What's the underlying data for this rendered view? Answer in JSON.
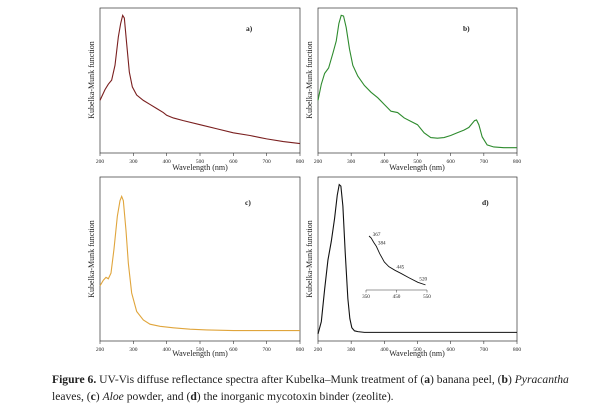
{
  "chart_data": [
    {
      "type": "line",
      "panel_label": "a)",
      "title": "",
      "xlabel": "Wavelength (nm)",
      "ylabel": "Kubelka-Munk function",
      "xlim": [
        200,
        800
      ],
      "ylim": [
        0,
        1
      ],
      "xticks": [
        200,
        300,
        400,
        500,
        600,
        700,
        800
      ],
      "color": "#7a1f1f",
      "series": [
        {
          "name": "banana peel",
          "x": [
            200,
            215,
            225,
            235,
            245,
            255,
            262,
            268,
            273,
            280,
            288,
            297,
            310,
            330,
            350,
            370,
            390,
            400,
            420,
            450,
            500,
            550,
            600,
            650,
            660,
            680,
            700,
            750,
            800
          ],
          "y": [
            0.36,
            0.44,
            0.48,
            0.51,
            0.62,
            0.83,
            0.93,
            0.99,
            0.97,
            0.78,
            0.57,
            0.46,
            0.4,
            0.36,
            0.33,
            0.3,
            0.27,
            0.25,
            0.23,
            0.21,
            0.18,
            0.15,
            0.12,
            0.1,
            0.095,
            0.085,
            0.075,
            0.055,
            0.04
          ]
        }
      ]
    },
    {
      "type": "line",
      "panel_label": "b)",
      "title": "",
      "xlabel": "Wavelength (nm)",
      "ylabel": "Kubelka-Munk function",
      "xlim": [
        200,
        800
      ],
      "ylim": [
        0,
        1
      ],
      "xticks": [
        200,
        300,
        400,
        500,
        600,
        700,
        800
      ],
      "color": "#2e8b2e",
      "series": [
        {
          "name": "Pyracantha leaves",
          "x": [
            200,
            210,
            220,
            232,
            245,
            255,
            263,
            270,
            277,
            285,
            295,
            305,
            320,
            340,
            360,
            380,
            400,
            420,
            440,
            460,
            480,
            500,
            520,
            540,
            560,
            580,
            600,
            620,
            640,
            655,
            665,
            672,
            678,
            685,
            695,
            710,
            730,
            760,
            800
          ],
          "y": [
            0.36,
            0.48,
            0.56,
            0.6,
            0.71,
            0.8,
            0.93,
            0.99,
            0.985,
            0.9,
            0.74,
            0.62,
            0.54,
            0.47,
            0.42,
            0.38,
            0.33,
            0.28,
            0.27,
            0.23,
            0.205,
            0.18,
            0.12,
            0.085,
            0.08,
            0.085,
            0.1,
            0.12,
            0.14,
            0.16,
            0.19,
            0.21,
            0.215,
            0.18,
            0.09,
            0.03,
            0.015,
            0.01,
            0.01
          ]
        }
      ]
    },
    {
      "type": "line",
      "panel_label": "c)",
      "title": "",
      "xlabel": "Wavelength (nm)",
      "ylabel": "Kubelka-Munk function",
      "xlim": [
        200,
        800
      ],
      "ylim": [
        0,
        1
      ],
      "xticks": [
        200,
        300,
        400,
        500,
        600,
        700,
        800
      ],
      "color": "#e0a53c",
      "series": [
        {
          "name": "Aloe powder",
          "x": [
            200,
            210,
            218,
            225,
            233,
            242,
            252,
            260,
            265,
            270,
            278,
            285,
            295,
            310,
            330,
            350,
            380,
            420,
            470,
            520,
            600,
            700,
            800
          ],
          "y": [
            0.36,
            0.4,
            0.42,
            0.41,
            0.45,
            0.62,
            0.85,
            0.96,
            0.99,
            0.96,
            0.75,
            0.52,
            0.31,
            0.18,
            0.12,
            0.09,
            0.075,
            0.065,
            0.055,
            0.05,
            0.045,
            0.045,
            0.045
          ]
        }
      ]
    },
    {
      "type": "line",
      "panel_label": "d)",
      "title": "",
      "xlabel": "Wavelength (nm)",
      "ylabel": "Kubelka-Munk function",
      "xlim": [
        200,
        800
      ],
      "ylim": [
        0,
        1
      ],
      "xticks": [
        200,
        300,
        400,
        500,
        600,
        700,
        800
      ],
      "color": "#111111",
      "series": [
        {
          "name": "inorganic mycotoxin binder (zeolite)",
          "x": [
            200,
            210,
            220,
            230,
            240,
            250,
            258,
            264,
            269,
            275,
            282,
            290,
            296,
            302,
            310,
            320,
            340,
            400,
            500,
            600,
            700,
            800
          ],
          "y": [
            0.02,
            0.1,
            0.31,
            0.5,
            0.62,
            0.77,
            0.92,
            0.99,
            0.98,
            0.85,
            0.55,
            0.25,
            0.12,
            0.06,
            0.04,
            0.035,
            0.03,
            0.03,
            0.03,
            0.03,
            0.03,
            0.03
          ]
        }
      ],
      "inset": {
        "type": "line",
        "xlim": [
          350,
          550
        ],
        "xticks": [
          350,
          450,
          550
        ],
        "annotations": [
          "367",
          "384",
          "445",
          "520"
        ],
        "annotation_x": [
          367,
          384,
          445,
          520
        ],
        "x": [
          360,
          367,
          375,
          384,
          395,
          410,
          425,
          445,
          465,
          490,
          520,
          545
        ],
        "y": [
          1.0,
          0.96,
          0.88,
          0.8,
          0.66,
          0.5,
          0.41,
          0.34,
          0.28,
          0.2,
          0.11,
          0.06
        ]
      }
    }
  ],
  "caption": {
    "figure_label": "Figure 6.",
    "text_1": " UV-Vis diffuse reflectance spectra after Kubelka–Munk treatment of (",
    "a": "a",
    "text_2": ") banana peel, (",
    "b": "b",
    "text_3": ") ",
    "pyracantha": "Pyracantha",
    "text_4": " leaves, (",
    "c": "c",
    "text_5": ") ",
    "aloe": "Aloe",
    "text_6": " powder, and (",
    "d": "d",
    "text_7": ") the inorganic mycotoxin binder (zeolite)."
  }
}
